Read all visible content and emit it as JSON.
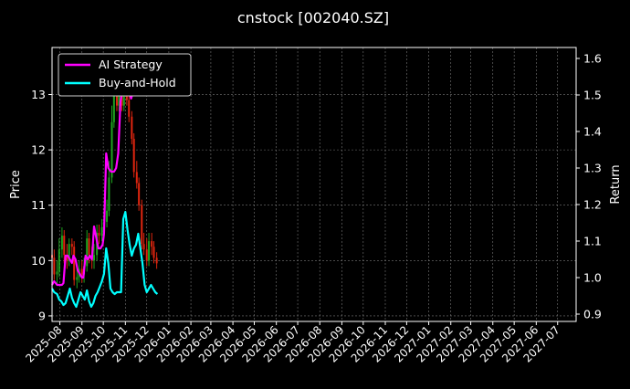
{
  "chart_data": {
    "type": "line",
    "title": "cnstock [002040.SZ]",
    "ylabel_left": "Price",
    "ylabel_right": "Return",
    "x_ticks": [
      "2025-08",
      "2025-09",
      "2025-10",
      "2025-11",
      "2025-12",
      "2026-01",
      "2026-02",
      "2026-03",
      "2026-04",
      "2026-05",
      "2026-06",
      "2026-07",
      "2026-08",
      "2026-09",
      "2026-10",
      "2026-11",
      "2026-12",
      "2027-01",
      "2027-02",
      "2027-03",
      "2027-04",
      "2027-05",
      "2027-06",
      "2027-07"
    ],
    "xlim": [
      "2025-07-21",
      "2027-07-27"
    ],
    "y_left_ticks": [
      9,
      10,
      11,
      12,
      13
    ],
    "y_left_lim": [
      8.9,
      13.85
    ],
    "y_right_ticks": [
      0.9,
      1.0,
      1.1,
      1.2,
      1.3,
      1.4,
      1.5,
      1.6
    ],
    "y_right_lim": [
      0.88,
      1.63
    ],
    "grid": true,
    "legend_position": "top-left",
    "background": "#000000",
    "candles": {
      "x": [
        "2025-07-21",
        "2025-07-24",
        "2025-07-28",
        "2025-07-31",
        "2025-08-04",
        "2025-08-07",
        "2025-08-11",
        "2025-08-14",
        "2025-08-18",
        "2025-08-21",
        "2025-08-25",
        "2025-08-28",
        "2025-09-01",
        "2025-09-04",
        "2025-09-08",
        "2025-09-11",
        "2025-09-15",
        "2025-09-18",
        "2025-09-22",
        "2025-09-25",
        "2025-09-29",
        "2025-10-02",
        "2025-10-06",
        "2025-10-09",
        "2025-10-13",
        "2025-10-16",
        "2025-10-20",
        "2025-10-23",
        "2025-10-27",
        "2025-10-30",
        "2025-11-03",
        "2025-11-06",
        "2025-11-10",
        "2025-11-13",
        "2025-11-17",
        "2025-11-20",
        "2025-11-24",
        "2025-11-27",
        "2025-12-01",
        "2025-12-04",
        "2025-12-08",
        "2025-12-11",
        "2025-12-15"
      ],
      "open": [
        10.1,
        10.05,
        9.75,
        9.8,
        10.2,
        10.45,
        10.1,
        10.0,
        10.3,
        10.25,
        9.65,
        9.7,
        9.85,
        9.75,
        9.9,
        10.4,
        10.1,
        10.0,
        10.1,
        10.5,
        10.45,
        10.6,
        10.7,
        10.9,
        11.5,
        12.5,
        13.1,
        12.8,
        13.2,
        12.8,
        13.4,
        12.9,
        12.6,
        12.2,
        11.6,
        11.4,
        11.0,
        10.3,
        10.2,
        10.0,
        10.35,
        10.25,
        10.05
      ],
      "close": [
        10.05,
        9.75,
        9.8,
        10.2,
        10.45,
        10.1,
        10.0,
        10.3,
        10.25,
        9.65,
        9.7,
        9.85,
        9.75,
        9.9,
        10.4,
        10.1,
        10.0,
        10.1,
        10.5,
        10.45,
        10.6,
        10.7,
        10.9,
        11.5,
        12.5,
        13.1,
        12.8,
        13.2,
        12.8,
        13.4,
        12.9,
        12.6,
        12.2,
        11.6,
        11.4,
        11.0,
        10.3,
        10.2,
        10.0,
        10.35,
        10.25,
        10.05,
        9.95
      ],
      "high": [
        10.3,
        10.2,
        10.0,
        10.4,
        10.6,
        10.55,
        10.3,
        10.4,
        10.4,
        10.35,
        9.9,
        10.0,
        10.0,
        10.05,
        10.55,
        10.5,
        10.25,
        10.3,
        10.65,
        10.65,
        10.75,
        10.85,
        11.1,
        11.8,
        12.8,
        13.3,
        13.3,
        13.4,
        13.5,
        13.6,
        13.6,
        13.1,
        12.7,
        12.3,
        11.8,
        11.5,
        11.1,
        10.5,
        10.4,
        10.5,
        10.5,
        10.35,
        10.15
      ],
      "low": [
        9.9,
        9.65,
        9.55,
        9.7,
        10.05,
        9.95,
        9.85,
        9.9,
        10.1,
        9.55,
        9.5,
        9.6,
        9.6,
        9.6,
        9.8,
        9.95,
        9.85,
        9.85,
        10.0,
        10.3,
        10.35,
        10.5,
        10.6,
        10.8,
        11.4,
        12.4,
        12.7,
        12.7,
        12.7,
        12.7,
        12.8,
        12.5,
        12.1,
        11.5,
        11.3,
        10.9,
        10.2,
        10.1,
        9.9,
        9.9,
        10.1,
        9.95,
        9.85
      ]
    },
    "series": [
      {
        "name": "AI Strategy",
        "color": "#ff00ff",
        "x": [
          "2025-07-21",
          "2025-07-24",
          "2025-07-28",
          "2025-08-01",
          "2025-08-04",
          "2025-08-06",
          "2025-08-09",
          "2025-08-12",
          "2025-08-15",
          "2025-08-18",
          "2025-08-20",
          "2025-08-23",
          "2025-08-26",
          "2025-08-29",
          "2025-09-01",
          "2025-09-03",
          "2025-09-06",
          "2025-09-09",
          "2025-09-12",
          "2025-09-15",
          "2025-09-18",
          "2025-09-21",
          "2025-09-24",
          "2025-09-27",
          "2025-09-30",
          "2025-10-02",
          "2025-10-05",
          "2025-10-08",
          "2025-10-12",
          "2025-10-16",
          "2025-10-19",
          "2025-10-22",
          "2025-10-25",
          "2025-10-28",
          "2025-10-31",
          "2025-11-03",
          "2025-11-06",
          "2025-11-09",
          "2025-11-12",
          "2025-11-15",
          "2025-11-18",
          "2025-11-21",
          "2025-11-24"
        ],
        "values": [
          0.98,
          0.99,
          0.98,
          0.98,
          0.98,
          0.985,
          1.06,
          1.06,
          1.05,
          1.04,
          1.06,
          1.05,
          1.02,
          1.01,
          1.0,
          1.0,
          1.06,
          1.05,
          1.06,
          1.05,
          1.14,
          1.11,
          1.08,
          1.08,
          1.09,
          1.12,
          1.34,
          1.3,
          1.29,
          1.29,
          1.3,
          1.34,
          1.48,
          1.52,
          1.5,
          1.51,
          1.51,
          1.49,
          1.51,
          1.5,
          1.51,
          1.51,
          1.53
        ]
      },
      {
        "name": "Buy-and-Hold",
        "color": "#00ffff",
        "x": [
          "2025-07-21",
          "2025-07-24",
          "2025-07-28",
          "2025-07-31",
          "2025-08-03",
          "2025-08-06",
          "2025-08-09",
          "2025-08-12",
          "2025-08-15",
          "2025-08-18",
          "2025-08-21",
          "2025-08-24",
          "2025-08-27",
          "2025-08-30",
          "2025-09-02",
          "2025-09-05",
          "2025-09-08",
          "2025-09-11",
          "2025-09-14",
          "2025-09-17",
          "2025-09-20",
          "2025-09-23",
          "2025-09-26",
          "2025-09-29",
          "2025-10-02",
          "2025-10-05",
          "2025-10-08",
          "2025-10-11",
          "2025-10-14",
          "2025-10-17",
          "2025-10-20",
          "2025-10-23",
          "2025-10-26",
          "2025-10-29",
          "2025-11-01",
          "2025-11-04",
          "2025-11-07",
          "2025-11-10",
          "2025-11-13",
          "2025-11-16",
          "2025-11-19",
          "2025-11-22",
          "2025-11-25",
          "2025-11-28",
          "2025-12-01",
          "2025-12-04",
          "2025-12-07",
          "2025-12-10",
          "2025-12-13",
          "2025-12-16"
        ],
        "values": [
          0.97,
          0.96,
          0.955,
          0.94,
          0.935,
          0.925,
          0.93,
          0.95,
          0.97,
          0.945,
          0.93,
          0.92,
          0.94,
          0.96,
          0.95,
          0.94,
          0.965,
          0.935,
          0.92,
          0.93,
          0.95,
          0.96,
          0.975,
          0.99,
          1.01,
          1.08,
          1.04,
          0.97,
          0.96,
          0.955,
          0.96,
          0.96,
          0.96,
          1.16,
          1.18,
          1.13,
          1.09,
          1.06,
          1.08,
          1.09,
          1.12,
          1.08,
          1.04,
          0.98,
          0.96,
          0.97,
          0.98,
          0.97,
          0.96,
          0.955
        ]
      }
    ]
  }
}
